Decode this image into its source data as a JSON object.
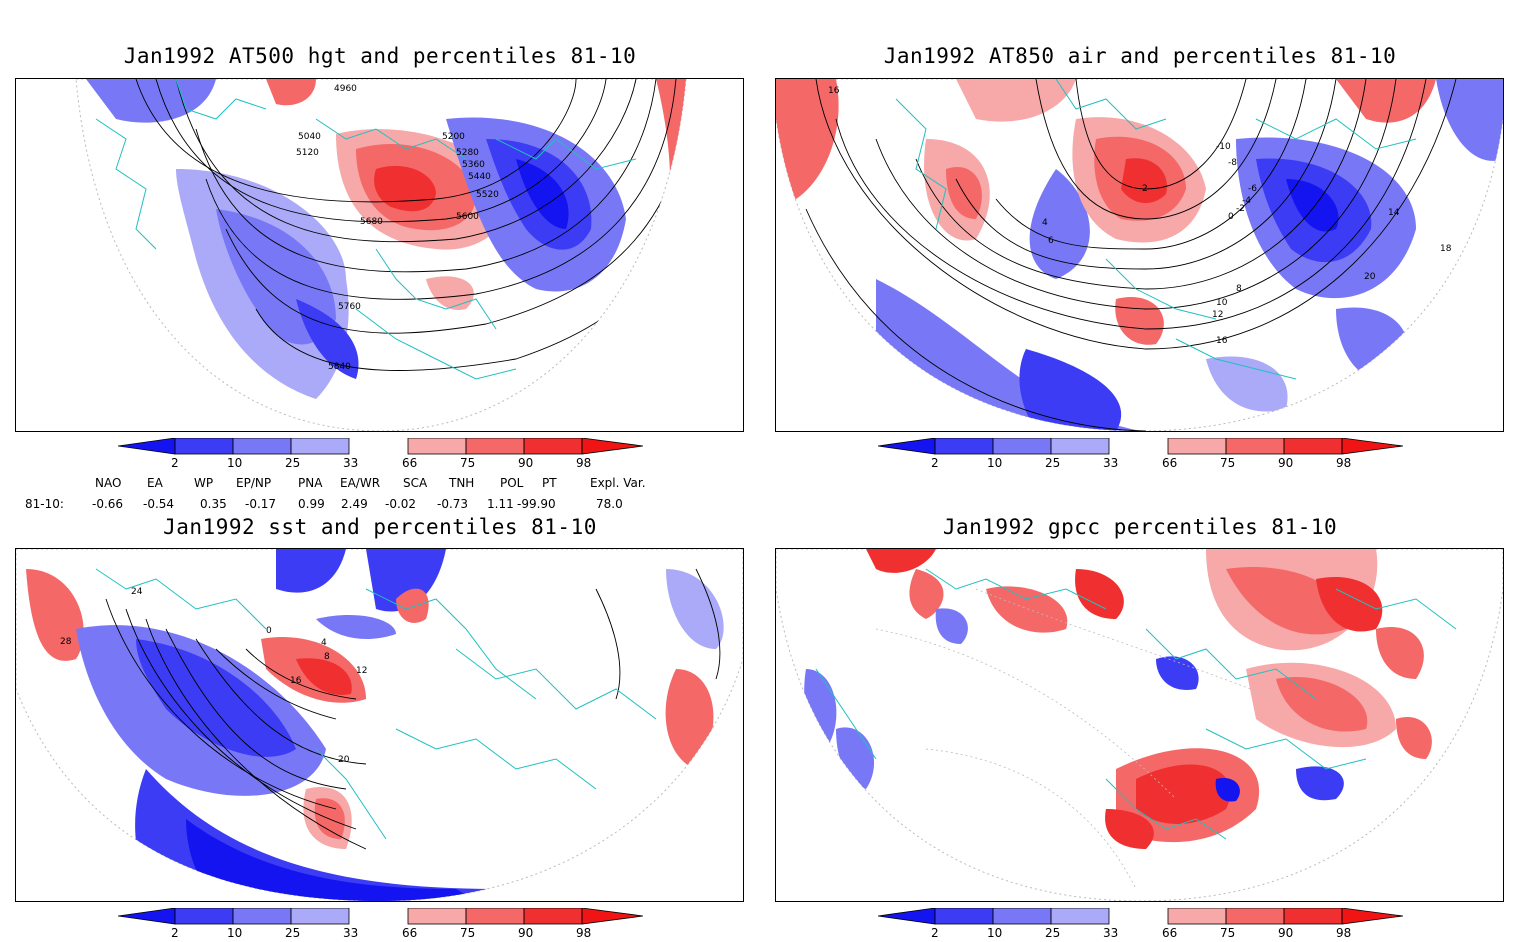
{
  "panels": [
    {
      "id": "p1",
      "title": "Jan1992 AT500 hgt and percentiles 81-10",
      "contour_labels": [
        "4960",
        "5040",
        "5120",
        "5200",
        "5280",
        "5360",
        "5440",
        "5520",
        "5600",
        "5680",
        "5760",
        "5840"
      ]
    },
    {
      "id": "p2",
      "title": "Jan1992 AT850 air and percentiles 81-10",
      "contour_labels": [
        "16",
        "-10",
        "-8",
        "-6",
        "-4",
        "-2",
        "0",
        "2",
        "4",
        "6",
        "8",
        "10",
        "12",
        "14",
        "16",
        "18",
        "20"
      ]
    },
    {
      "id": "p3",
      "title": "Jan1992 sst and percentiles 81-10",
      "contour_labels": [
        "0",
        "4",
        "8",
        "12",
        "16",
        "20",
        "24",
        "28"
      ]
    },
    {
      "id": "p4",
      "title": "Jan1992 gpcc percentiles 81-10",
      "contour_labels": []
    }
  ],
  "colorbar": {
    "ticks": [
      "2",
      "10",
      "25",
      "33",
      "66",
      "75",
      "90",
      "98"
    ],
    "colors": {
      "below2": "#1414f0",
      "b2_10": "#3c3cf5",
      "b10_25": "#7878f7",
      "b25_33": "#aaaaf8",
      "mid": "#ffffff",
      "a66_75": "#f7a8a8",
      "a75_90": "#f46868",
      "a90_98": "#f03030",
      "above98": "#f01414"
    }
  },
  "indices": {
    "headers": [
      "NAO",
      "EA",
      "WP",
      "EP/NP",
      "PNA",
      "EA/WR",
      "SCA",
      "TNH",
      "POL",
      "PT",
      "Expl. Var."
    ],
    "row_label": "81-10:",
    "values": [
      "-0.66",
      "-0.54",
      "0.35",
      "-0.17",
      "0.99",
      "2.49",
      "-0.02",
      "-0.73",
      "1.11",
      "-99.90",
      "78.0"
    ]
  },
  "colors": {
    "map_lines": "#20c0c0",
    "contour": "#000000"
  }
}
